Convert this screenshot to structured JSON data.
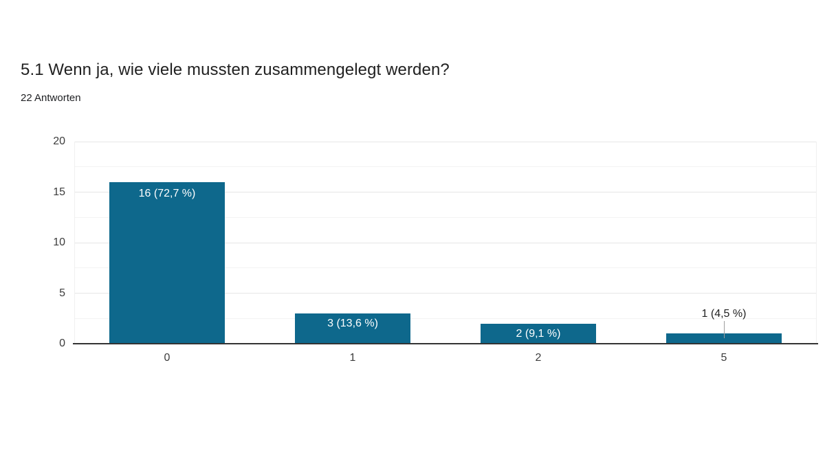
{
  "header": {
    "title": "5.1 Wenn ja, wie viele mussten zusammengelegt werden?",
    "subtitle": "22 Antworten"
  },
  "chart_data": {
    "type": "bar",
    "title": "5.1 Wenn ja, wie viele mussten zusammengelegt werden?",
    "subtitle": "22 Antworten",
    "total_responses": 22,
    "categories": [
      "0",
      "1",
      "2",
      "5"
    ],
    "values": [
      16,
      3,
      2,
      1
    ],
    "bar_labels": [
      "16 (72,7 %)",
      "3 (13,6 %)",
      "2 (9,1 %)",
      "1 (4,5 %)"
    ],
    "xlabel": "",
    "ylabel": "",
    "ylim": [
      0,
      20
    ],
    "yticks": [
      0,
      5,
      10,
      15,
      20
    ],
    "minor_yticks": [
      2.5,
      7.5,
      12.5,
      17.5
    ],
    "grid": true,
    "legend": "none",
    "colors": {
      "bar": "#0e688c",
      "axis_line": "#333333",
      "grid_major": "#e6e6e6",
      "grid_minor": "#f3f3f3",
      "plot_edge": "#f0f0f0",
      "label_inside": "#ffffff",
      "label_outside": "#212121",
      "axis_text": "#3c3c3c",
      "leader_line": "#9e9e9e"
    }
  }
}
